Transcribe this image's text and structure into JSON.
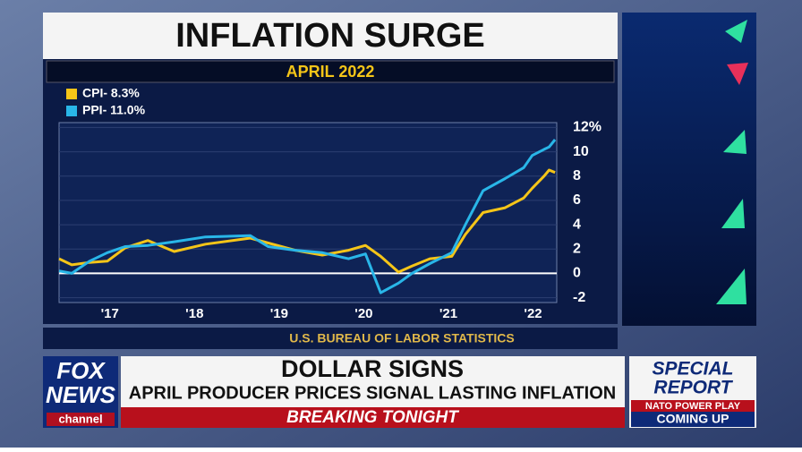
{
  "chart_data": {
    "type": "line",
    "title": "INFLATION SURGE",
    "subtitle": "APRIL 2022",
    "source": "U.S. BUREAU OF LABOR STATISTICS",
    "x": [
      16.4,
      16.55,
      16.76,
      16.97,
      17.18,
      17.45,
      17.76,
      18.13,
      18.66,
      18.87,
      19.19,
      19.51,
      19.82,
      20.02,
      20.2,
      20.41,
      20.57,
      20.78,
      21.04,
      21.2,
      21.41,
      21.67,
      21.89,
      21.99,
      22.13,
      22.19,
      22.26
    ],
    "series": [
      {
        "name": "CPI- 8.3%",
        "color": "#f5c518",
        "values": [
          1.2,
          0.7,
          0.9,
          1.0,
          2.1,
          2.7,
          1.8,
          2.4,
          2.9,
          2.5,
          1.9,
          1.5,
          1.9,
          2.3,
          1.4,
          0.1,
          0.6,
          1.2,
          1.4,
          3.2,
          5.0,
          5.4,
          6.2,
          7.0,
          8.0,
          8.5,
          8.3
        ]
      },
      {
        "name": "PPI- 11.0%",
        "color": "#29b6e8",
        "values": [
          0.2,
          0.0,
          1.0,
          1.7,
          2.2,
          2.3,
          2.6,
          3.0,
          3.1,
          2.2,
          1.9,
          1.7,
          1.2,
          1.6,
          -1.6,
          -0.8,
          0.0,
          0.8,
          1.7,
          4.0,
          6.8,
          7.8,
          8.7,
          9.7,
          10.2,
          10.4,
          11.0
        ]
      }
    ],
    "xlim": [
      16.4,
      22.28
    ],
    "xticks": [
      {
        "value": 17,
        "label": "'17"
      },
      {
        "value": 18,
        "label": "'18"
      },
      {
        "value": 19,
        "label": "'19"
      },
      {
        "value": 20,
        "label": "'20"
      },
      {
        "value": 21,
        "label": "'21"
      },
      {
        "value": 22,
        "label": "'22"
      }
    ],
    "ylim": [
      -2.4,
      12.4
    ],
    "yticks": [
      -2,
      0,
      2,
      4,
      6,
      8,
      10,
      {
        "value": 12,
        "label": "12%"
      }
    ],
    "grid": true,
    "legend": "top-left"
  },
  "broadcast": {
    "logo": [
      "FOX",
      "NEWS",
      "channel"
    ],
    "headline": "DOLLAR SIGNS",
    "subheadline": "APRIL PRODUCER PRICES SIGNAL LASTING INFLATION",
    "ticker": "BREAKING TONIGHT",
    "promo": [
      "SPECIAL",
      "REPORT",
      "NATO POWER PLAY",
      "COMING UP"
    ]
  }
}
